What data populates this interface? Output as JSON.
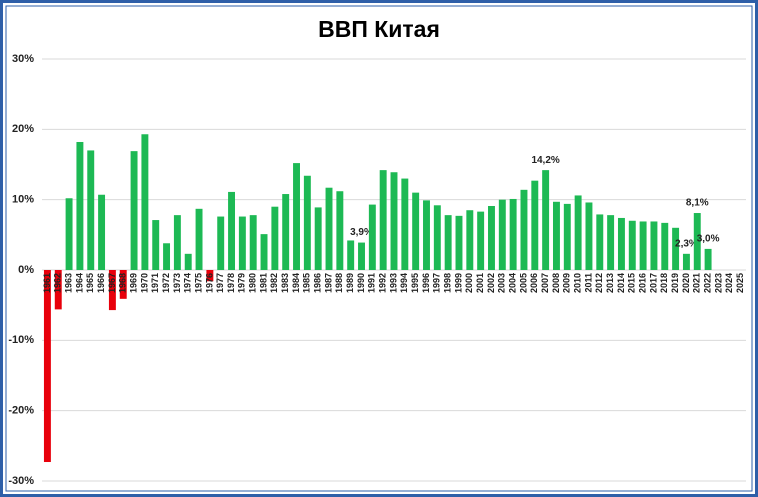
{
  "chart_data": {
    "type": "bar",
    "title": "ВВП Китая",
    "categories": [
      "1961",
      "1962",
      "1963",
      "1964",
      "1965",
      "1966",
      "1967",
      "1968",
      "1969",
      "1970",
      "1971",
      "1972",
      "1973",
      "1974",
      "1975",
      "1976",
      "1977",
      "1978",
      "1979",
      "1980",
      "1981",
      "1982",
      "1983",
      "1984",
      "1985",
      "1986",
      "1987",
      "1988",
      "1989",
      "1990",
      "1991",
      "1992",
      "1993",
      "1994",
      "1995",
      "1996",
      "1997",
      "1998",
      "1999",
      "2000",
      "2001",
      "2002",
      "2003",
      "2004",
      "2005",
      "2006",
      "2007",
      "2008",
      "2009",
      "2010",
      "2011",
      "2012",
      "2013",
      "2014",
      "2015",
      "2016",
      "2017",
      "2018",
      "2019",
      "2020",
      "2021",
      "2022",
      "2023",
      "2024",
      "2025"
    ],
    "values": [
      -27.3,
      -5.6,
      10.2,
      18.2,
      17.0,
      10.7,
      -5.7,
      -4.1,
      16.9,
      19.3,
      7.1,
      3.8,
      7.8,
      2.3,
      8.7,
      -1.6,
      7.6,
      11.1,
      7.6,
      7.8,
      5.1,
      9.0,
      10.8,
      15.2,
      13.4,
      8.9,
      11.7,
      11.2,
      4.2,
      3.9,
      9.3,
      14.2,
      13.9,
      13.0,
      11.0,
      9.9,
      9.2,
      7.8,
      7.7,
      8.5,
      8.3,
      9.1,
      10.0,
      10.1,
      11.4,
      12.7,
      14.2,
      9.7,
      9.4,
      10.6,
      9.6,
      7.9,
      7.8,
      7.4,
      7.0,
      6.9,
      6.9,
      6.7,
      6.0,
      2.3,
      8.1,
      3.0,
      null,
      null,
      null
    ],
    "value_labels": [
      null,
      null,
      null,
      null,
      null,
      null,
      null,
      null,
      null,
      null,
      null,
      null,
      null,
      null,
      null,
      null,
      null,
      null,
      null,
      null,
      null,
      null,
      null,
      null,
      null,
      null,
      null,
      null,
      null,
      "3,9%",
      null,
      null,
      null,
      null,
      null,
      null,
      null,
      null,
      null,
      null,
      null,
      null,
      null,
      null,
      null,
      null,
      "14,2%",
      null,
      null,
      null,
      null,
      null,
      null,
      null,
      null,
      null,
      null,
      null,
      null,
      "2,3%",
      "8,1%",
      "3,0%",
      null,
      null,
      null
    ],
    "color": "#1db954",
    "negative_color": "#e8000b",
    "ylim": [
      -30,
      30
    ],
    "yticks": [
      {
        "value": -30,
        "label": "-30%"
      },
      {
        "value": -20,
        "label": "-20%"
      },
      {
        "value": -10,
        "label": "-10%"
      },
      {
        "value": 0,
        "label": "0%"
      },
      {
        "value": 10,
        "label": "10%"
      },
      {
        "value": 20,
        "label": "20%"
      },
      {
        "value": 30,
        "label": "30%"
      }
    ],
    "grid": true
  }
}
